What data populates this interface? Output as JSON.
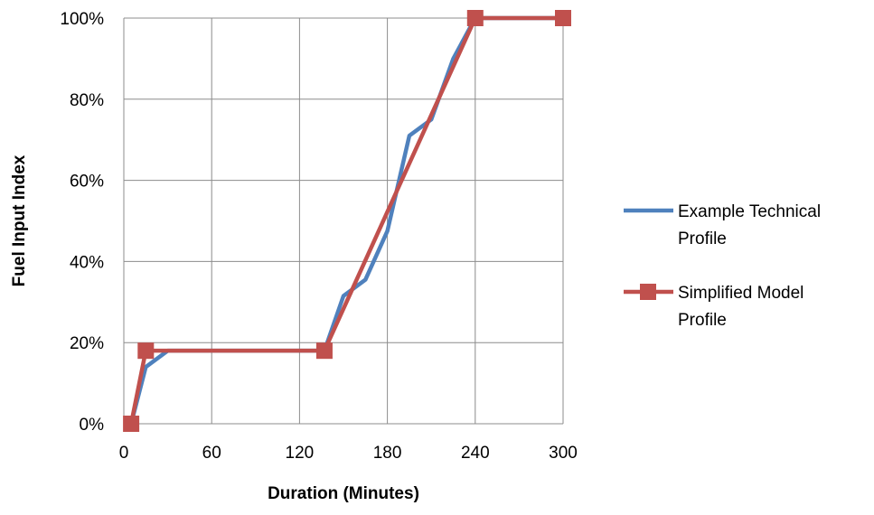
{
  "chart_data": {
    "type": "line",
    "title": "",
    "xlabel": "Duration (Minutes)",
    "ylabel": "Fuel Input Index",
    "xlim": [
      0,
      300
    ],
    "ylim": [
      0,
      100
    ],
    "x_ticks": [
      0,
      60,
      120,
      180,
      240,
      300
    ],
    "x_tick_labels": [
      "0",
      "60",
      "120",
      "180",
      "240",
      "300"
    ],
    "y_ticks": [
      0,
      20,
      40,
      60,
      80,
      100
    ],
    "y_tick_labels": [
      "0%",
      "20%",
      "40%",
      "60%",
      "80%",
      "100%"
    ],
    "grid": true,
    "legend_position": "right",
    "series": [
      {
        "name": "Example Technical Profile",
        "color": "#4f81bd",
        "marker": "none",
        "points": [
          [
            5,
            0
          ],
          [
            15,
            14
          ],
          [
            30,
            18
          ],
          [
            137,
            18
          ],
          [
            150,
            31.5
          ],
          [
            165,
            35.5
          ],
          [
            180,
            47.5
          ],
          [
            195,
            71
          ],
          [
            210,
            75
          ],
          [
            225,
            90
          ],
          [
            240,
            100
          ],
          [
            300,
            100
          ]
        ]
      },
      {
        "name": "Simplified Model Profile",
        "color": "#c0504d",
        "marker": "square",
        "points": [
          [
            5,
            0
          ],
          [
            15,
            18
          ],
          [
            137,
            18
          ],
          [
            240,
            100
          ],
          [
            300,
            100
          ]
        ]
      }
    ]
  }
}
